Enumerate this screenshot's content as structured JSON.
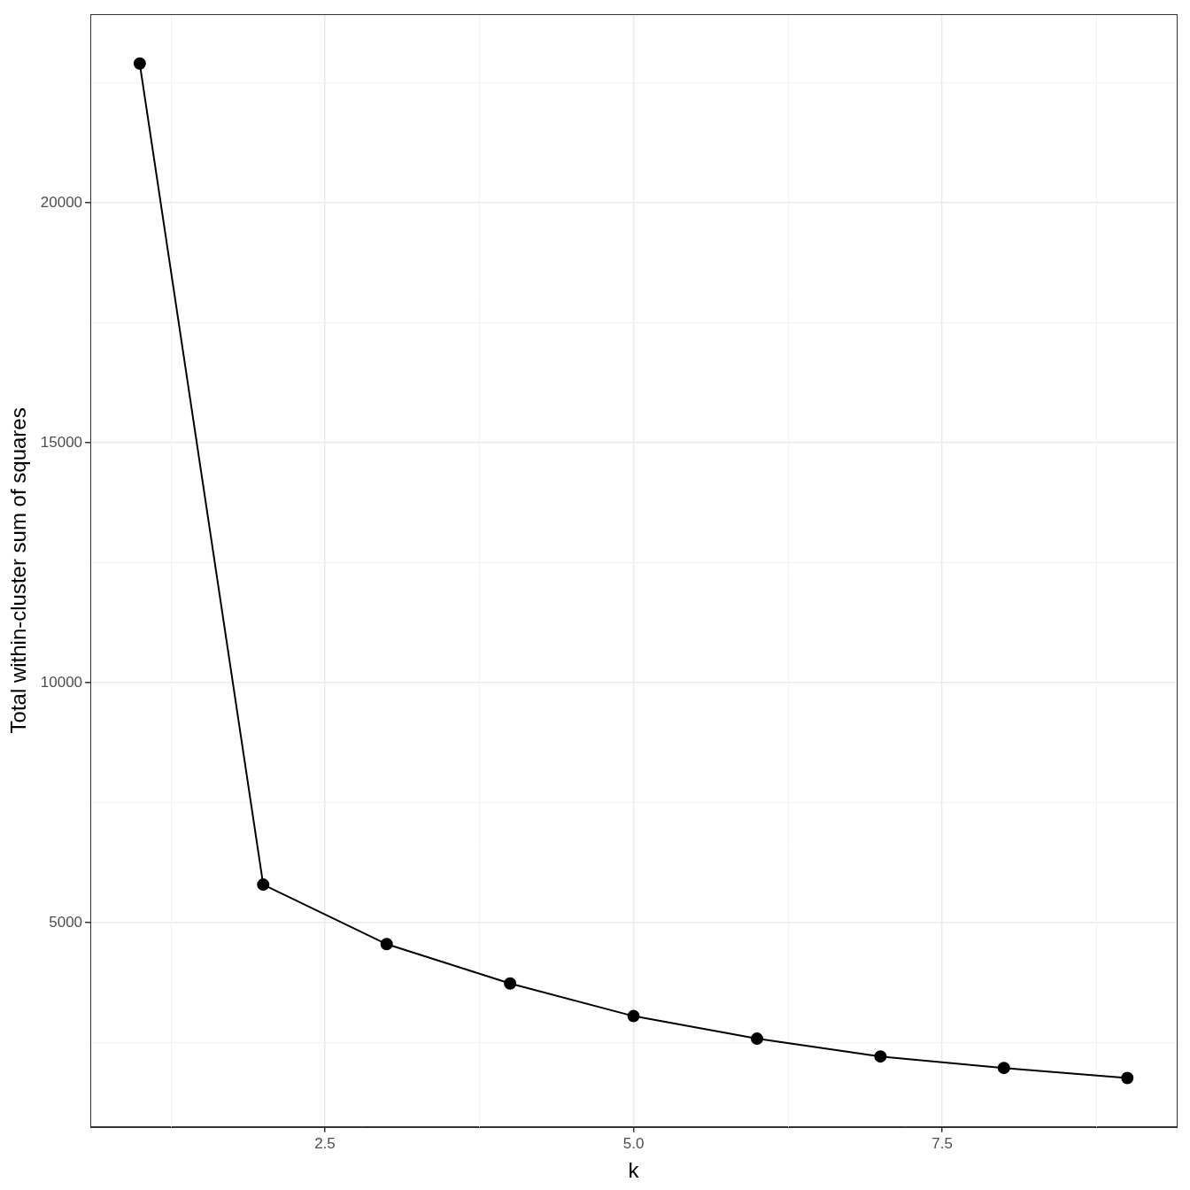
{
  "chart_data": {
    "type": "line",
    "x_label": "k",
    "y_label": "Total within-cluster sum of squares",
    "x": [
      1,
      2,
      3,
      4,
      5,
      6,
      7,
      8,
      9
    ],
    "values": [
      22900,
      5790,
      4550,
      3730,
      3050,
      2580,
      2210,
      1970,
      1760
    ],
    "color": "#000000",
    "marker": "circle",
    "xlim": [
      0.6,
      9.4
    ],
    "xticks": [
      2.5,
      {
        "value": 5,
        "label": "5.0"
      },
      7.5
    ],
    "ylim": [
      740,
      23930
    ],
    "yticks": [
      5000,
      10000,
      15000,
      20000
    ],
    "grid": true
  }
}
